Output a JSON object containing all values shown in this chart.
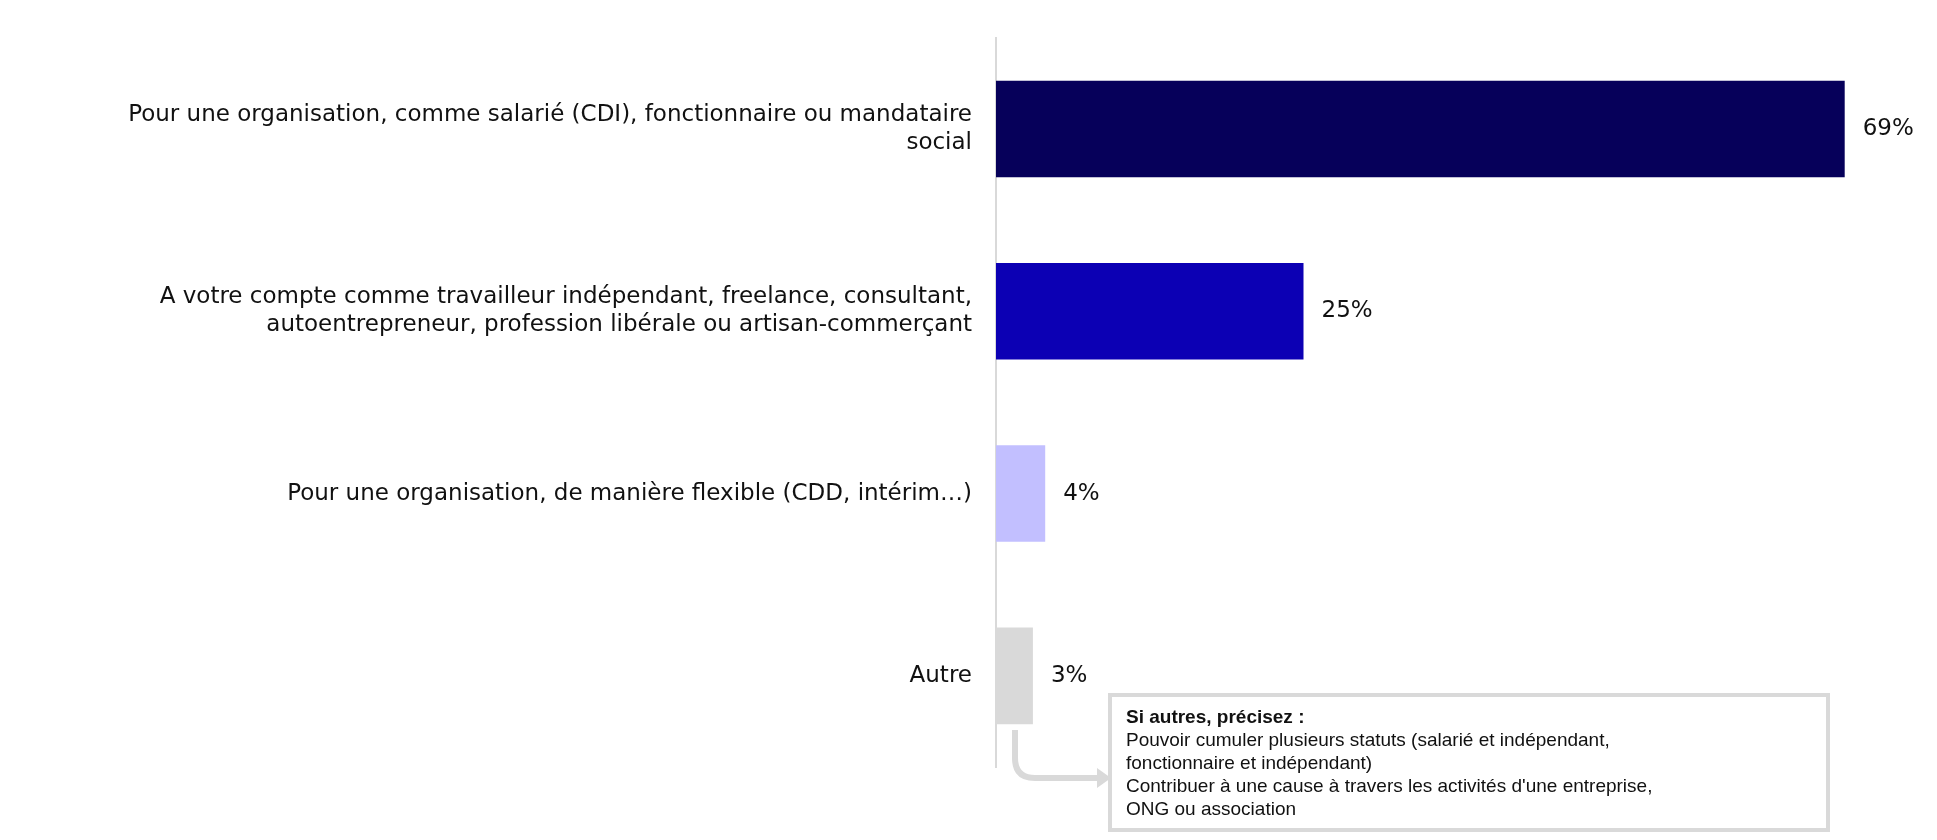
{
  "chart_data": {
    "type": "bar",
    "orientation": "horizontal",
    "categories": [
      "Pour une organisation, comme salarié (CDI), fonctionnaire ou mandataire social",
      "A votre compte comme travailleur indépendant, freelance, consultant, autoentrepreneur, profession libérale ou artisan-commerçant",
      "Pour une organisation, de manière flexible (CDD, intérim…)",
      "Autre"
    ],
    "values": [
      69,
      25,
      4,
      3
    ],
    "colors": [
      "#06005a",
      "#0c00b4",
      "#c2bfff",
      "#d9d9d9"
    ],
    "value_labels": [
      "69%",
      "25%",
      "4%",
      "3%"
    ],
    "annotations": [
      "Si autres, précisez :\nPouvoir cumuler plusieurs statuts (salarié et indépendant,\nfonctionnaire et indépendant)\nContribuer à une cause à travers les activités d'une entreprise,\nONG ou association"
    ]
  }
}
